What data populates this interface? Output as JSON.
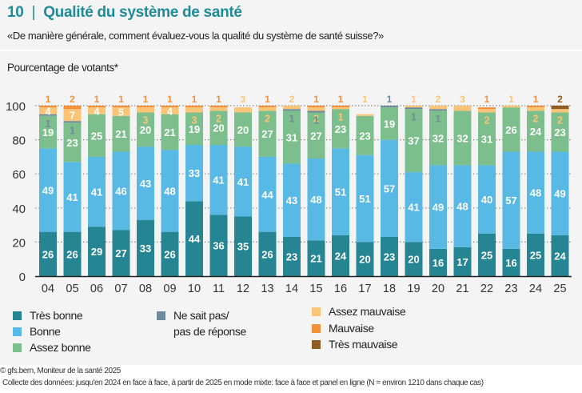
{
  "header": {
    "number": "10",
    "separator": "|",
    "title": "Qualité du système de santé",
    "question": "«De manière générale, comment évaluez-vous la qualité du système de santé suisse?»"
  },
  "colors": {
    "title": "#1d8c96",
    "tres_bonne": "#268592",
    "bonne": "#58b9e4",
    "assez_bonne": "#7cbf8c",
    "nsp": "#6f8a9b",
    "assez_mauvaise": "#fcc476",
    "mauvaise": "#f2913a",
    "tres_mauvaise": "#8c5c22"
  },
  "legend": {
    "tres_bonne": "Très bonne",
    "bonne": "Bonne",
    "assez_bonne": "Assez bonne",
    "nsp_line1": "Ne sait pas/",
    "nsp_line2": "pas de réponse",
    "assez_mauvaise": "Assez mauvaise",
    "mauvaise": "Mauvaise",
    "tres_mauvaise": "Très mauvaise"
  },
  "footer": {
    "source": "© gfs.bern, Moniteur de la santé 2025",
    "note": "Collecte des données: jusqu'en 2024 en face à face, à partir de 2025 en mode mixte: face à face et panel en ligne (N = environ 1210 dans chaque cas)"
  },
  "chart_data": {
    "type": "bar",
    "stacked": true,
    "title": "Qualité du système de santé",
    "ylabel": "Pourcentage de votants*",
    "xlabel": "",
    "ylim": [
      0,
      100
    ],
    "yticks": [
      0,
      20,
      40,
      60,
      80,
      100
    ],
    "grid": true,
    "legend_position": "bottom",
    "categories": [
      "04",
      "05",
      "06",
      "07",
      "08",
      "09",
      "10",
      "11",
      "12",
      "13",
      "14",
      "15",
      "16",
      "17",
      "18",
      "19",
      "20",
      "21",
      "22",
      "23",
      "24",
      "25"
    ],
    "series": [
      {
        "key": "tres_bonne",
        "name": "Très bonne",
        "values": [
          26,
          26,
          29,
          27,
          33,
          26,
          44,
          36,
          35,
          26,
          23,
          21,
          24,
          20,
          23,
          20,
          16,
          17,
          25,
          16,
          25,
          24
        ]
      },
      {
        "key": "bonne",
        "name": "Bonne",
        "values": [
          49,
          41,
          41,
          46,
          43,
          48,
          33,
          41,
          41,
          44,
          43,
          48,
          51,
          51,
          57,
          41,
          49,
          48,
          40,
          57,
          48,
          49
        ]
      },
      {
        "key": "assez_bonne",
        "name": "Assez bonne",
        "values": [
          19,
          23,
          25,
          21,
          20,
          21,
          19,
          20,
          20,
          27,
          31,
          27,
          23,
          23,
          19,
          37,
          32,
          32,
          31,
          26,
          24,
          23
        ]
      },
      {
        "key": "nsp",
        "name": "Ne sait pas/pas de réponse",
        "values": [
          1,
          1,
          0,
          0,
          0,
          0,
          0,
          0,
          0,
          0,
          1,
          1,
          0,
          0,
          1,
          1,
          1,
          0,
          0,
          0,
          0,
          0
        ]
      },
      {
        "key": "assez_mauvaise",
        "name": "Assez mauvaise",
        "values": [
          4,
          7,
          4,
          5,
          3,
          4,
          3,
          2,
          3,
          2,
          2,
          2,
          1,
          1,
          0,
          1,
          2,
          3,
          2,
          1,
          2,
          2
        ]
      },
      {
        "key": "mauvaise",
        "name": "Mauvaise",
        "values": [
          1,
          2,
          1,
          1,
          1,
          1,
          1,
          1,
          0,
          1,
          0,
          1,
          1,
          0,
          0,
          0,
          0,
          0,
          1,
          0,
          1,
          0
        ]
      },
      {
        "key": "tres_mauvaise",
        "name": "Très mauvaise",
        "values": [
          0,
          0,
          0,
          0,
          0,
          0,
          0,
          0,
          0,
          0,
          0,
          0,
          0,
          0,
          0,
          0,
          0,
          0,
          0,
          0,
          0,
          2
        ]
      }
    ]
  }
}
